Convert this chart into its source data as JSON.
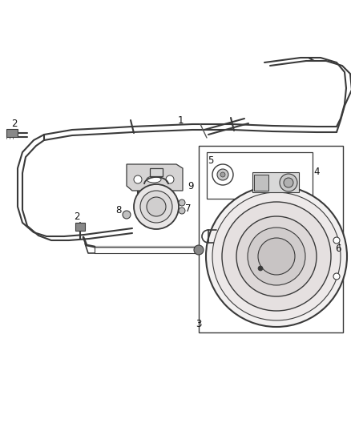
{
  "bg_color": "#ffffff",
  "line_color": "#3a3a3a",
  "lw": 1.5,
  "label_fontsize": 8.5,
  "label_color": "#111111",
  "fig_width": 4.38,
  "fig_height": 5.33,
  "dpi": 100
}
